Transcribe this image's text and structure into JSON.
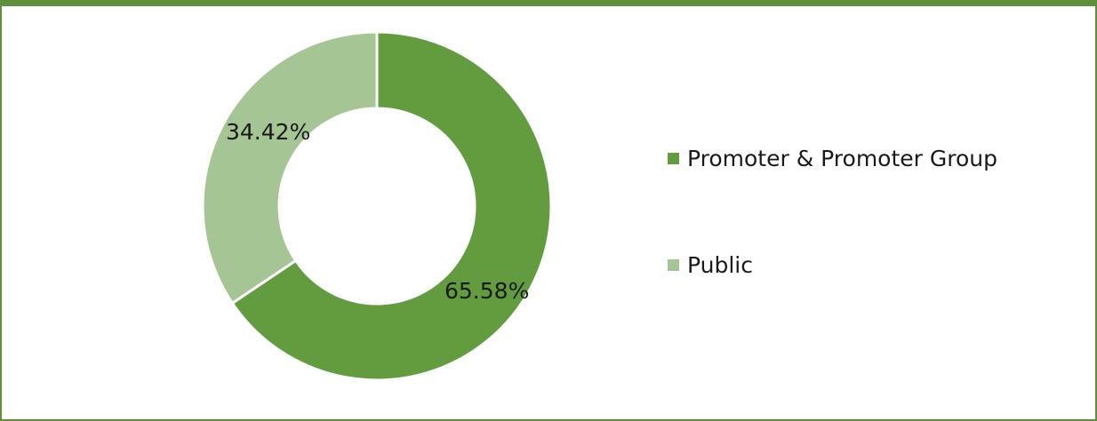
{
  "chart_data": {
    "type": "pie",
    "variant": "donut",
    "categories": [
      "Promoter & Promoter Group",
      "Public"
    ],
    "values": [
      65.58,
      34.42
    ],
    "unit": "%",
    "data_labels": [
      "65.58%",
      "34.42%"
    ],
    "colors": [
      "#639c3e",
      "#a5c594"
    ],
    "legend_placement": "right",
    "title": ""
  },
  "frame": {
    "border_color": "#5e8f3a"
  }
}
